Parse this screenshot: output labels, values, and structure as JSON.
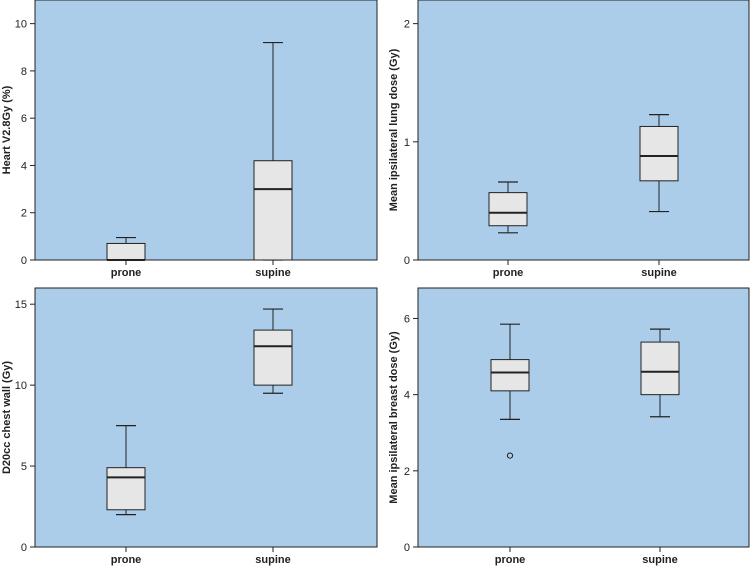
{
  "colors": {
    "plot_background": "#abcdea",
    "box_fill": "#e6e6e6",
    "stroke": "#222222"
  },
  "chart_data": [
    {
      "type": "boxplot",
      "title": "",
      "xlabel": "",
      "ylabel": "Heart V2.8Gy (%)",
      "ylim": [
        0,
        11
      ],
      "yticks": [
        "0",
        "2",
        "4",
        "6",
        "8",
        "10"
      ],
      "categories": [
        "prone",
        "supine"
      ],
      "boxes": [
        {
          "category": "prone",
          "whisker_low": 0,
          "q1": 0,
          "median": 0,
          "q3": 0.7,
          "whisker_high": 0.95,
          "outliers": []
        },
        {
          "category": "supine",
          "whisker_low": 0,
          "q1": 0,
          "median": 3.0,
          "q3": 4.2,
          "whisker_high": 9.2,
          "outliers": []
        }
      ]
    },
    {
      "type": "boxplot",
      "title": "",
      "xlabel": "",
      "ylabel": "Mean ipsilateral lung dose (Gy)",
      "ylim": [
        0,
        2.2
      ],
      "yticks": [
        "0",
        "1",
        "2"
      ],
      "categories": [
        "prone",
        "supine"
      ],
      "boxes": [
        {
          "category": "prone",
          "whisker_low": 0.23,
          "q1": 0.29,
          "median": 0.4,
          "q3": 0.57,
          "whisker_high": 0.66,
          "outliers": []
        },
        {
          "category": "supine",
          "whisker_low": 0.41,
          "q1": 0.67,
          "median": 0.88,
          "q3": 1.13,
          "whisker_high": 1.23,
          "outliers": []
        }
      ]
    },
    {
      "type": "boxplot",
      "title": "",
      "xlabel": "",
      "ylabel": "D20cc chest wall (Gy)",
      "ylim": [
        0,
        16
      ],
      "yticks": [
        "0",
        "5",
        "10",
        "15"
      ],
      "categories": [
        "prone",
        "supine"
      ],
      "boxes": [
        {
          "category": "prone",
          "whisker_low": 2.0,
          "q1": 2.3,
          "median": 4.3,
          "q3": 4.9,
          "whisker_high": 7.5,
          "outliers": []
        },
        {
          "category": "supine",
          "whisker_low": 9.5,
          "q1": 10.0,
          "median": 12.4,
          "q3": 13.4,
          "whisker_high": 14.7,
          "outliers": []
        }
      ]
    },
    {
      "type": "boxplot",
      "title": "",
      "xlabel": "",
      "ylabel": "Mean ipsilateral breast dose (Gy)",
      "ylim": [
        0,
        6.8
      ],
      "yticks": [
        "0",
        "2",
        "4",
        "6"
      ],
      "categories": [
        "prone",
        "supine"
      ],
      "boxes": [
        {
          "category": "prone",
          "whisker_low": 3.35,
          "q1": 4.1,
          "median": 4.58,
          "q3": 4.92,
          "whisker_high": 5.85,
          "outliers": [
            2.4
          ]
        },
        {
          "category": "supine",
          "whisker_low": 3.42,
          "q1": 4.0,
          "median": 4.6,
          "q3": 5.38,
          "whisker_high": 5.72,
          "outliers": []
        }
      ]
    }
  ]
}
